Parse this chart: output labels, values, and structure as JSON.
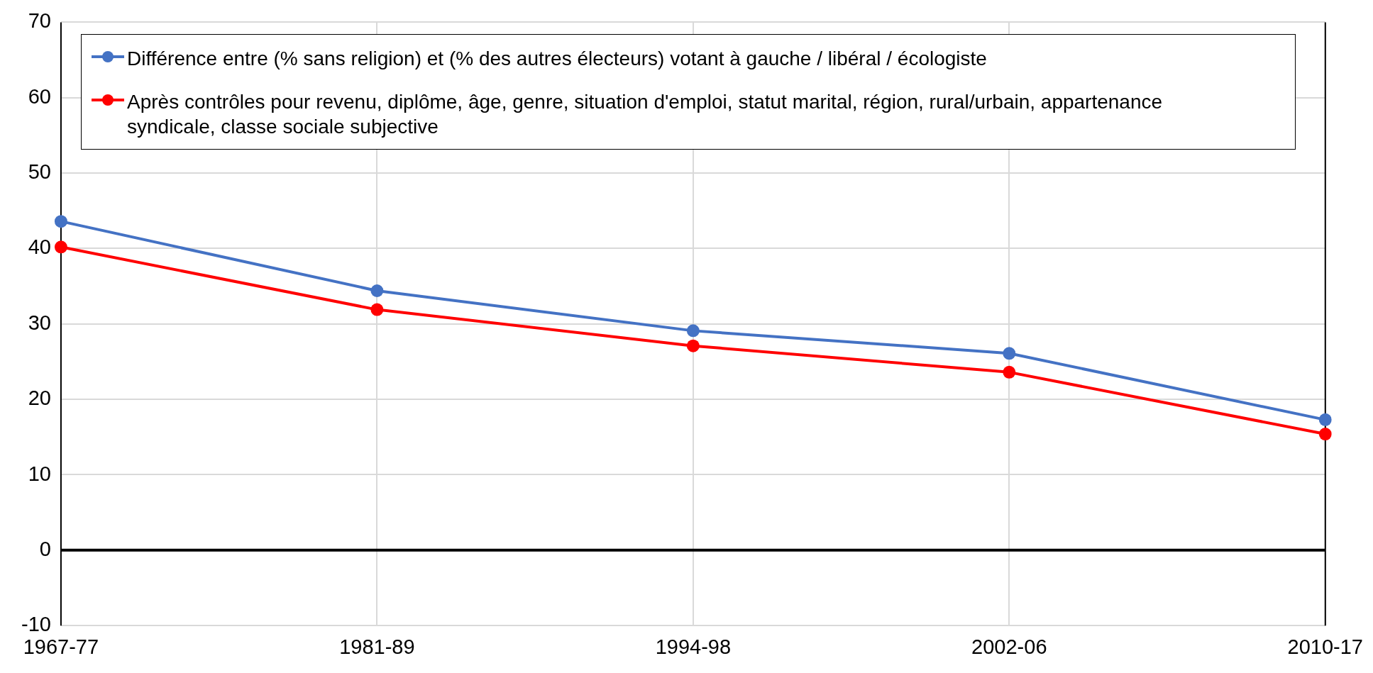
{
  "chart_data": {
    "type": "line",
    "categories": [
      "1967-77",
      "1981-89",
      "1994-98",
      "2002-06",
      "2010-17"
    ],
    "series": [
      {
        "name": "Différence entre (% sans religion) et (% des autres électeurs) votant à gauche / libéral / écologiste",
        "color": "#4472c4",
        "values": [
          43.6,
          34.4,
          29.1,
          26.1,
          17.3
        ]
      },
      {
        "name": "Après contrôles pour revenu, diplôme, âge, genre, situation d'emploi, statut marital, région, rural/urbain, appartenance syndicale, classe sociale subjective",
        "color": "#ff0000",
        "values": [
          40.2,
          31.9,
          27.1,
          23.6,
          15.4
        ]
      }
    ],
    "ylim": [
      -10,
      70
    ],
    "yticks": [
      -10,
      0,
      10,
      20,
      30,
      40,
      50,
      60,
      70
    ],
    "ref_lines": [
      {
        "axis": "y",
        "value": 0,
        "color": "#000000"
      }
    ],
    "grid": true,
    "legend": "top",
    "marker": "circle",
    "line_style": "solid"
  }
}
